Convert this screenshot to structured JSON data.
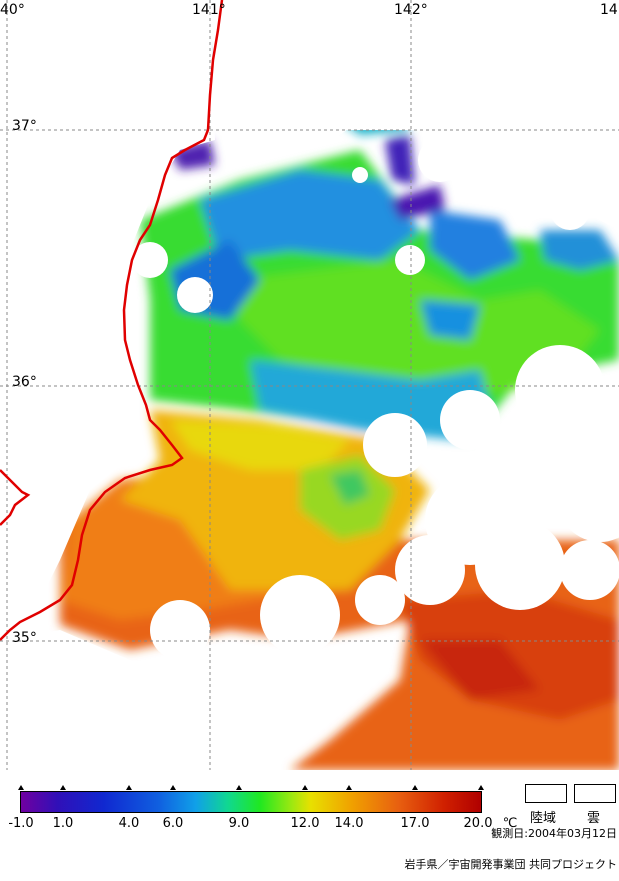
{
  "map": {
    "lon_labels": [
      "40°",
      "141°",
      "142°",
      "14"
    ],
    "lat_labels": [
      "37°",
      "36°",
      "35°"
    ],
    "coastline_color": "#e00000",
    "grid_color": "#888888",
    "cloud_color": "#ffffff"
  },
  "legend": {
    "ticks": [
      "-1.0",
      "1.0",
      "4.0",
      "6.0",
      "9.0",
      "12.0",
      "14.0",
      "17.0",
      "20.0"
    ],
    "unit": "℃",
    "land_label": "陸域",
    "cloud_label": "雲"
  },
  "footer": {
    "observation_date": "観測日:2004年03月12日",
    "credit": "岩手県／宇宙開発事業団 共同プロジェクト"
  }
}
